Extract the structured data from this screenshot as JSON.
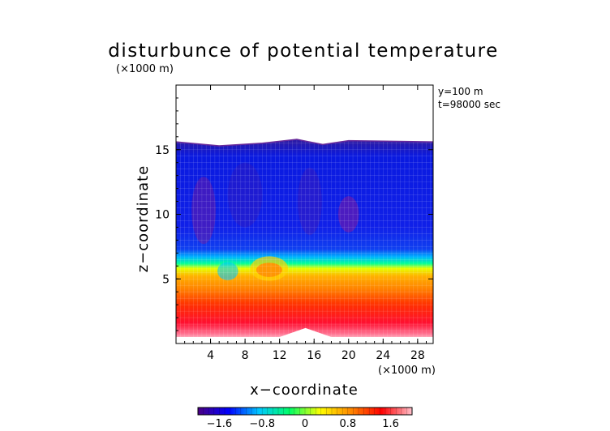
{
  "chart_data": {
    "type": "heatmap",
    "title": "disturbunce of potential temperature",
    "y_unit_label": "(×1000 m)",
    "x_unit_label": "(×1000 m)",
    "xlabel": "x−coordinate",
    "ylabel": "z−coordinate",
    "annotations": [
      "y=100 m",
      "t=98000 sec"
    ],
    "x_range": [
      0,
      29.8
    ],
    "y_range": [
      0,
      20
    ],
    "x_ticks": [
      4,
      8,
      12,
      16,
      20,
      24,
      28
    ],
    "x_tick_labels": [
      "4",
      "8",
      "12",
      "16",
      "20",
      "24",
      "28"
    ],
    "y_ticks": [
      5,
      10,
      15
    ],
    "y_tick_labels": [
      "5",
      "10",
      "15"
    ],
    "colorbar": {
      "range": [
        -2.0,
        2.0
      ],
      "ticks": [
        -1.6,
        -0.8,
        0,
        0.8,
        1.6
      ],
      "tick_labels": [
        "−1.6",
        "−0.8",
        "0",
        "0.8",
        "1.6"
      ],
      "colors": [
        "#4b0082",
        "#0000ff",
        "#00c8ff",
        "#00ff66",
        "#ffff00",
        "#ff8800",
        "#ff0000",
        "#ffc0cb"
      ]
    },
    "field_description": {
      "upper_layer_value": -1.4,
      "lower_layer_value": 1.8,
      "model_top_height": [
        [
          0,
          15.6
        ],
        [
          5,
          15.3
        ],
        [
          10,
          15.5
        ],
        [
          14,
          15.8
        ],
        [
          17,
          15.4
        ],
        [
          20,
          15.7
        ],
        [
          29.8,
          15.6
        ]
      ],
      "ground_height": [
        [
          0,
          0.5
        ],
        [
          12,
          0.5
        ],
        [
          15,
          1.2
        ],
        [
          18,
          0.5
        ],
        [
          29.8,
          0.5
        ]
      ]
    }
  }
}
